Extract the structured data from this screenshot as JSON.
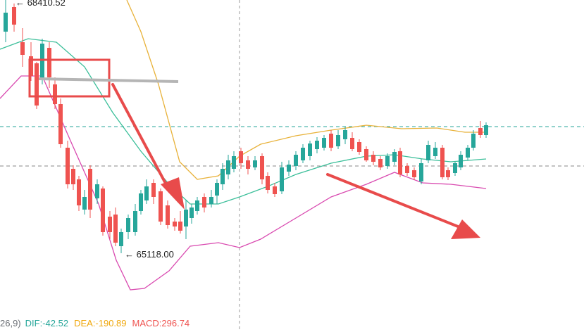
{
  "chart_data": {
    "type": "candlestick",
    "price_annotations": {
      "high_label": "← 68410.52",
      "low_label": "← 65118.00"
    },
    "indicators": {
      "bollinger_bands": {
        "upper_color": "#e8b23a",
        "middle_color": "#3cbf9a",
        "lower_color": "#d94ab0"
      }
    },
    "overlays": [
      {
        "kind": "rectangle",
        "color": "#e84b4b"
      },
      {
        "kind": "horizontal-line",
        "color": "#b5b5b5"
      },
      {
        "kind": "arrow",
        "color": "#e84b4b"
      },
      {
        "kind": "arrow",
        "color": "#e84b4b"
      }
    ],
    "macd_legend": {
      "params": "26,9)",
      "dif": "DIF:-42.52",
      "dea": "DEA:-190.89",
      "macd": "MACD:296.74"
    },
    "colors": {
      "up_candle": "#26a69a",
      "down_candle": "#ef5350",
      "dif": "#26a69a",
      "dea": "#f0a70a",
      "macd": "#ef5350",
      "crosshair_h": "#26a69a",
      "crosshair_v": "#999999"
    }
  }
}
